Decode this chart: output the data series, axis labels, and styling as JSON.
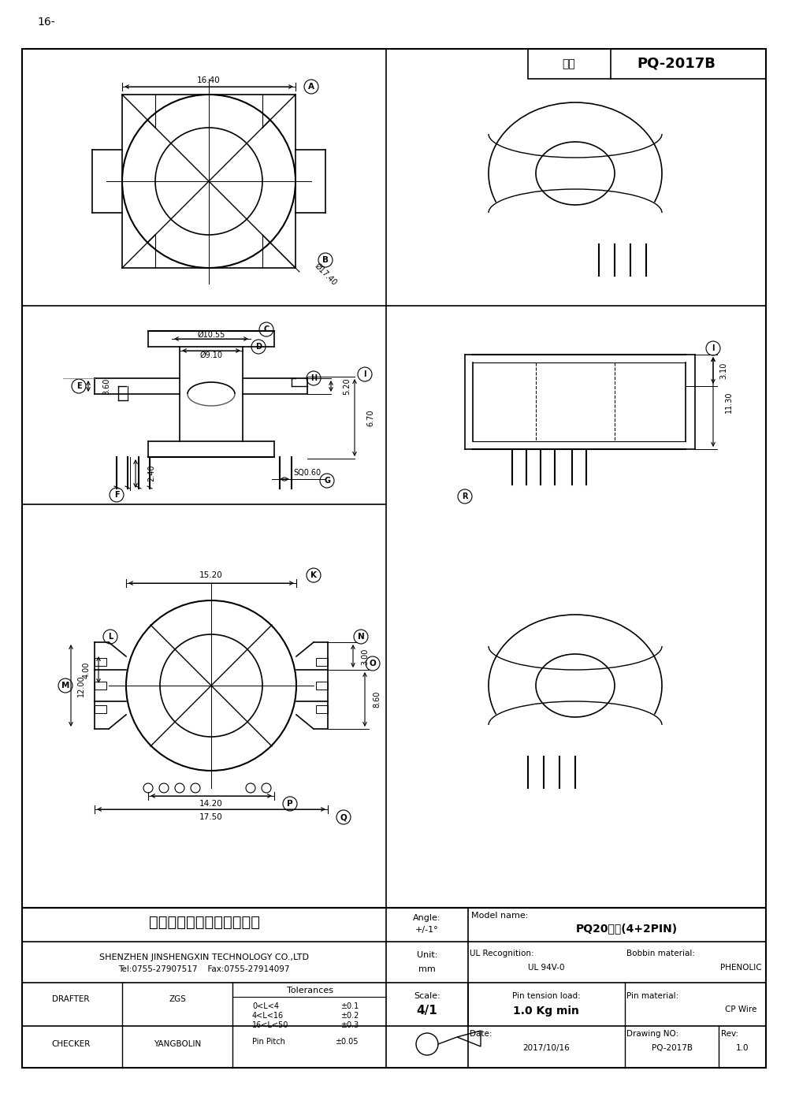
{
  "title_page": "16-",
  "model_label": "型号",
  "model_value": "PQ-2017B",
  "company_cn": "深圳市金盛鑫科技有限公司",
  "company_en": "SHENZHEN JINSHENGXIN TECHNOLOGY CO.,LTD",
  "company_contact": "Tel:0755-27907517    Fax:0755-27914097",
  "model_name_label": "Model name:",
  "model_name_value": "PQ20立式(4+2PIN)",
  "ul_label": "UL Recognition:",
  "ul_value": "UL 94V-0",
  "bobbin_label": "Bobbin material:",
  "bobbin_value": "PHENOLIC",
  "pin_tension_label": "Pin tension load:",
  "pin_tension_value": "1.0 Kg min",
  "pin_material_label": "Pin material:",
  "pin_material_value": "CP Wire",
  "drafter_label": "DRAFTER",
  "drafter_value": "ZGS",
  "checker_label": "CHECKER",
  "checker_value": "YANGBOLIN",
  "tolerances_label": "Tolerances",
  "tol1_range": "0<L<4",
  "tol1_val": "±0.1",
  "tol2_range": "4<L<16",
  "tol2_val": "±0.2",
  "tol3_range": "16<L<50",
  "tol3_val": "±0.3",
  "tol4_range": "Pin Pitch",
  "tol4_val": "±0.05",
  "date_label": "Date:",
  "date_value": "2017/10/16",
  "drawing_no_label": "Drawing NO:",
  "drawing_no_value": "PQ-2017B",
  "rev_label": "Rev:",
  "rev_value": "1.0",
  "scale_label": "Scale:",
  "scale_value": "4/1",
  "angle_label": "Angle:",
  "angle_value": "+/-1°",
  "unit_label": "Unit:",
  "unit_value": "mm",
  "bg_color": "#ffffff"
}
